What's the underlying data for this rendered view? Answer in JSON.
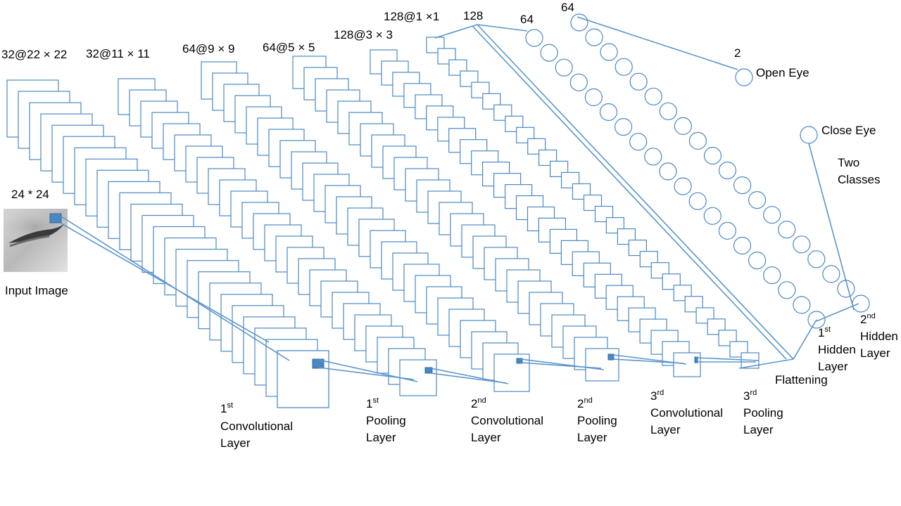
{
  "dimension_labels": {
    "conv1": "32@22 × 22",
    "pool1": "32@11 × 11",
    "conv2": "64@9 × 9",
    "pool2": "64@5 × 5",
    "conv3": "128@3 × 3",
    "pool3": "128@1 ×1",
    "flatten": "128",
    "hidden1": "64",
    "hidden2": "64",
    "output": "2",
    "input": "24 * 24"
  },
  "input_label": "Input Image",
  "layer_labels": {
    "conv1": {
      "num": "1",
      "sup": "st",
      "l2": "Convolutional",
      "l3": "Layer"
    },
    "pool1": {
      "num": "1",
      "sup": "st",
      "l2": "Pooling",
      "l3": "Layer"
    },
    "conv2": {
      "num": "2",
      "sup": "nd",
      "l2": "Convolutional",
      "l3": "Layer"
    },
    "pool2": {
      "num": "2",
      "sup": "nd",
      "l2": "Pooling",
      "l3": "Layer"
    },
    "conv3": {
      "num": "3",
      "sup": "rd",
      "l2": "Convolutional",
      "l3": "Layer"
    },
    "pool3": {
      "num": "3",
      "sup": "rd",
      "l2": "Pooling",
      "l3": "Layer"
    },
    "hidden1": {
      "num": "1",
      "sup": "st",
      "l2": "Hidden",
      "l3": "Layer"
    },
    "hidden2": {
      "num": "2",
      "sup": "nd",
      "l2": "Hidden",
      "l3": "Layer"
    }
  },
  "flattening_label": "Flattening",
  "classes": {
    "open": "Open Eye",
    "close": "Close Eye",
    "two": "Two",
    "classes": "Classes"
  },
  "colors": {
    "line": "#4a88c2",
    "highlight": "#4a88c2"
  }
}
